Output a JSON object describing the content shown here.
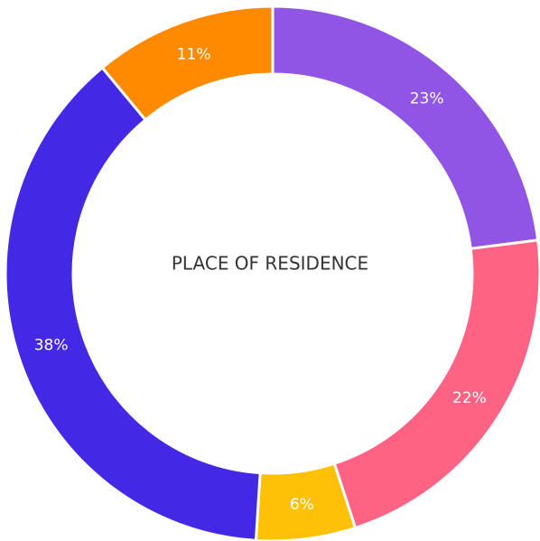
{
  "chart_data": {
    "type": "donut",
    "title": "PLACE OF RESIDENCE",
    "series": [
      {
        "values": [
          23,
          22,
          6,
          38,
          11
        ],
        "value_labels": [
          "23%",
          "22%",
          "6%",
          "38%",
          "11%"
        ],
        "colors": [
          "#9155e6",
          "#ff6384",
          "#ffc107",
          "#4329e6",
          "#ff8a00"
        ]
      }
    ]
  }
}
